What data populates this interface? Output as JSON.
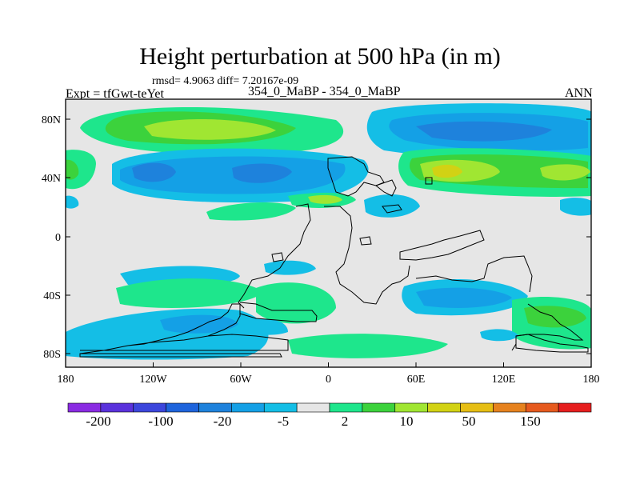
{
  "title": "Height perturbation at 500 hPa (in m)",
  "stats": "rmsd= 4.9063 diff= 7.20167e-09",
  "expt": "Expt = tfGwt-teYet",
  "experiment_names": "354_0_MaBP - 354_0_MaBP",
  "season": "ANN",
  "map": {
    "lat_ticks": [
      "80N",
      "40N",
      "0",
      "40S",
      "80S"
    ],
    "lon_ticks": [
      "180",
      "120W",
      "60W",
      "0",
      "60E",
      "120E",
      "180"
    ]
  },
  "colorbar": {
    "labels": [
      "-200",
      "-100",
      "-20",
      "-5",
      "2",
      "10",
      "50",
      "150"
    ],
    "colors": [
      "#8a2be2",
      "#5a32dc",
      "#3c46dc",
      "#1e64dc",
      "#1e82dc",
      "#14a0e6",
      "#14bee6",
      "#e6e6e6",
      "#1ee68c",
      "#3cd23c",
      "#a0e632",
      "#d2d214",
      "#e6be14",
      "#e6821e",
      "#e65a1e",
      "#e61e1e"
    ]
  },
  "field_colors": {
    "background": "#e6e6e6",
    "neg1": "#14bee6",
    "neg2": "#14a0e6",
    "neg3": "#1e82dc",
    "pos1": "#1ee68c",
    "pos2": "#3cd23c",
    "pos3": "#a0e632",
    "pos4": "#d2d214"
  }
}
